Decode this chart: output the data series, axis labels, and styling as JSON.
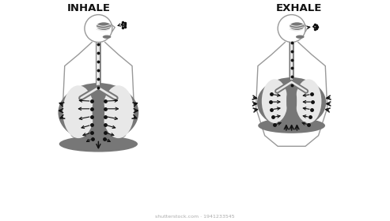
{
  "bg_color": "#ffffff",
  "outline_color": "#999999",
  "lung_dark_color": "#777777",
  "lung_light_color": "#e8e8e8",
  "arrow_color": "#111111",
  "text_color": "#111111",
  "inhale_label": "INHALE",
  "exhale_label": "EXHALE",
  "watermark": "shutterstock.com · 1941233545",
  "figure_width": 4.93,
  "figure_height": 2.8,
  "dpi": 100
}
